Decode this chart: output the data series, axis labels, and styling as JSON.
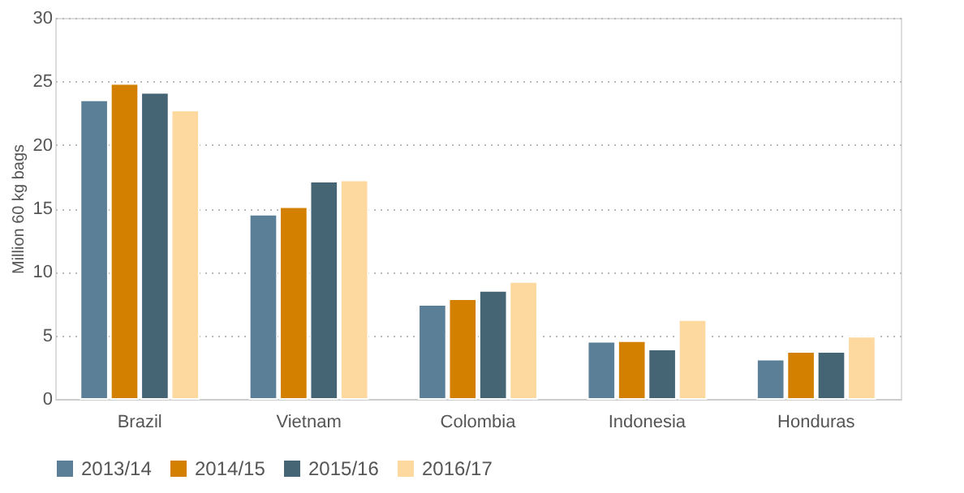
{
  "chart_data": {
    "type": "bar",
    "ylabel": "Million 60 kg bags",
    "categories": [
      "Brazil",
      "Vietnam",
      "Colombia",
      "Indonesia",
      "Honduras"
    ],
    "series": [
      {
        "name": "2013/14",
        "color": "#5a7f96",
        "values": [
          23.5,
          14.5,
          7.4,
          4.5,
          3.1
        ]
      },
      {
        "name": "2014/15",
        "color": "#d38000",
        "values": [
          24.8,
          15.1,
          7.85,
          4.55,
          3.7
        ]
      },
      {
        "name": "2015/16",
        "color": "#456575",
        "values": [
          24.1,
          17.1,
          8.5,
          3.9,
          3.7
        ]
      },
      {
        "name": "2016/17",
        "color": "#fdd89f",
        "values": [
          22.7,
          17.2,
          9.2,
          6.2,
          4.9
        ]
      }
    ],
    "ylim": [
      0,
      30
    ],
    "yticks": [
      0,
      5,
      10,
      15,
      20,
      25,
      30
    ],
    "grid": "y",
    "legend": "bottom"
  }
}
